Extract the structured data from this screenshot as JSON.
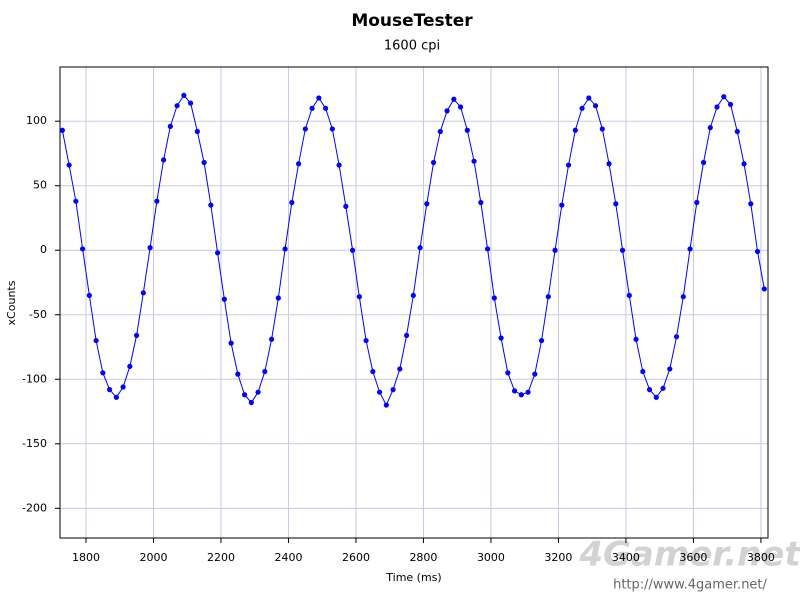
{
  "chart_data": {
    "type": "line",
    "title": "MouseTester",
    "subtitle": "1600 cpi",
    "x_label": "Time (ms)",
    "y_label": "xCounts",
    "watermark": "4Gamer.net",
    "watermark_url": "http://www.4gamer.net/",
    "xlim": [
      1723,
      3821
    ],
    "ylim": [
      -223,
      142
    ],
    "xticks": [
      1800,
      2000,
      2200,
      2400,
      2600,
      2800,
      3000,
      3200,
      3400,
      3600,
      3800
    ],
    "yticks": [
      -200,
      -150,
      -100,
      -50,
      0,
      50,
      100
    ],
    "grid": true,
    "markers": true,
    "x": [
      1730,
      1750,
      1770,
      1790,
      1810,
      1830,
      1850,
      1870,
      1890,
      1910,
      1930,
      1950,
      1970,
      1990,
      2010,
      2030,
      2050,
      2070,
      2090,
      2110,
      2130,
      2150,
      2170,
      2190,
      2210,
      2230,
      2250,
      2270,
      2290,
      2310,
      2330,
      2350,
      2370,
      2390,
      2410,
      2430,
      2450,
      2470,
      2490,
      2510,
      2530,
      2550,
      2570,
      2590,
      2610,
      2630,
      2650,
      2670,
      2690,
      2710,
      2730,
      2750,
      2770,
      2790,
      2810,
      2830,
      2850,
      2870,
      2890,
      2910,
      2930,
      2950,
      2970,
      2990,
      3010,
      3030,
      3050,
      3070,
      3090,
      3110,
      3130,
      3150,
      3170,
      3190,
      3210,
      3230,
      3250,
      3270,
      3290,
      3310,
      3330,
      3350,
      3370,
      3390,
      3410,
      3430,
      3450,
      3470,
      3490,
      3510,
      3530,
      3550,
      3570,
      3590,
      3610,
      3630,
      3650,
      3670,
      3690,
      3710,
      3730,
      3750,
      3770,
      3790,
      3810
    ],
    "series": [
      {
        "name": "xCounts",
        "color": "#0000ff",
        "values": [
          93,
          66,
          38,
          1,
          -35,
          -70,
          -95,
          -108,
          -114,
          -106,
          -90,
          -66,
          -33,
          2,
          38,
          70,
          96,
          112,
          120,
          114,
          92,
          68,
          35,
          -2,
          -38,
          -72,
          -96,
          -112,
          -118,
          -110,
          -94,
          -69,
          -37,
          1,
          37,
          67,
          94,
          110,
          118,
          110,
          94,
          66,
          34,
          0,
          -36,
          -70,
          -94,
          -110,
          -120,
          -108,
          -92,
          -66,
          -35,
          2,
          36,
          68,
          92,
          108,
          117,
          111,
          93,
          69,
          37,
          1,
          -37,
          -68,
          -95,
          -109,
          -112,
          -110,
          -96,
          -70,
          -36,
          0,
          35,
          66,
          93,
          110,
          118,
          112,
          94,
          67,
          36,
          0,
          -35,
          -69,
          -94,
          -108,
          -114,
          -107,
          -92,
          -67,
          -36,
          1,
          37,
          68,
          95,
          111,
          119,
          113,
          92,
          67,
          36,
          -1,
          -30
        ]
      }
    ]
  }
}
